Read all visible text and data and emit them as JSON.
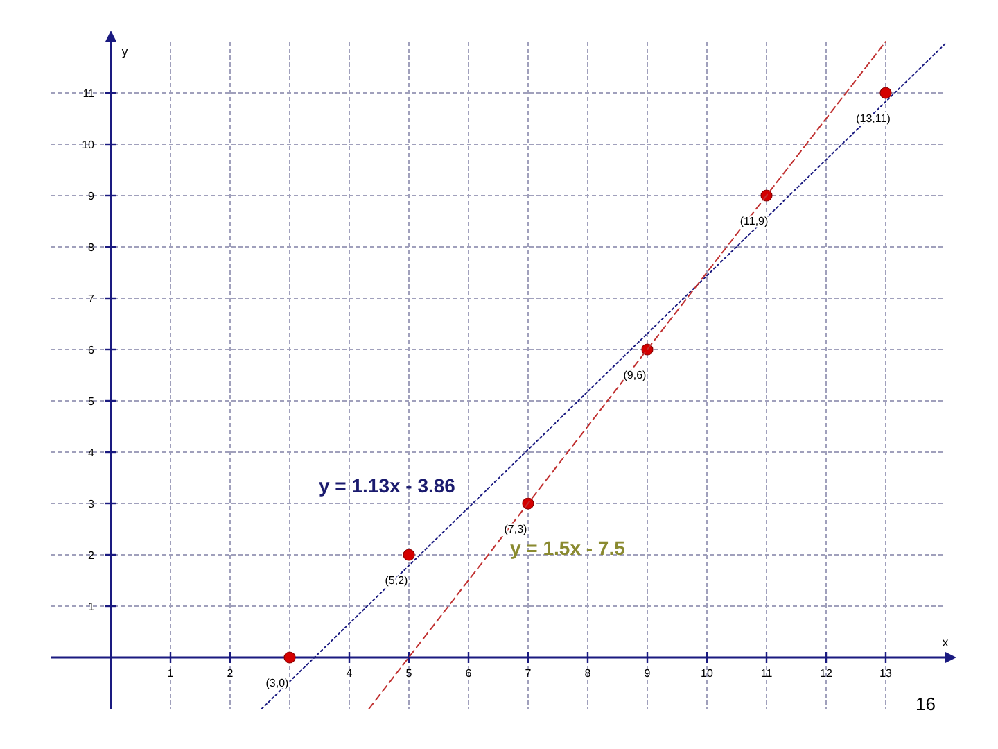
{
  "chart_data": {
    "type": "scatter",
    "xlabel": "x",
    "ylabel": "y",
    "xlim": [
      -1,
      14
    ],
    "ylim": [
      -1,
      12
    ],
    "xticks": [
      1,
      2,
      {
        "value": 3,
        "label": null
      },
      4,
      5,
      6,
      7,
      8,
      9,
      10,
      11,
      12,
      13
    ],
    "yticks": [
      1,
      2,
      3,
      4,
      5,
      6,
      7,
      8,
      9,
      10,
      11
    ],
    "grid": true,
    "series": [
      {
        "color": "#d40000",
        "marker": "circle",
        "x": [
          3,
          5,
          7,
          9,
          11,
          13
        ],
        "values": [
          0,
          2,
          3,
          6,
          9,
          11
        ]
      },
      {
        "type": "line",
        "color": "#1a1a80",
        "line_style": "dotted",
        "x": [
          2.53,
          14
        ],
        "values": [
          -1,
          11.96
        ]
      },
      {
        "type": "line",
        "color": "#c03030",
        "line_style": "dashed",
        "x": [
          4.33,
          13
        ],
        "values": [
          -1,
          12
        ]
      }
    ],
    "annotations": [
      "y = 1.13x - 3.86",
      "y = 1.5x - 7.5",
      "16",
      {
        "text": "(3,0)",
        "x": 3,
        "y": 0
      },
      {
        "text": "(5,2)",
        "x": 5,
        "y": 2
      },
      {
        "text": "(7,3)",
        "x": 7,
        "y": 3
      },
      {
        "text": "(9,6)",
        "x": 9,
        "y": 6
      },
      {
        "text": "(11,9)",
        "x": 11,
        "y": 9
      },
      {
        "text": "(13,11)",
        "x": 13,
        "y": 11
      }
    ]
  }
}
